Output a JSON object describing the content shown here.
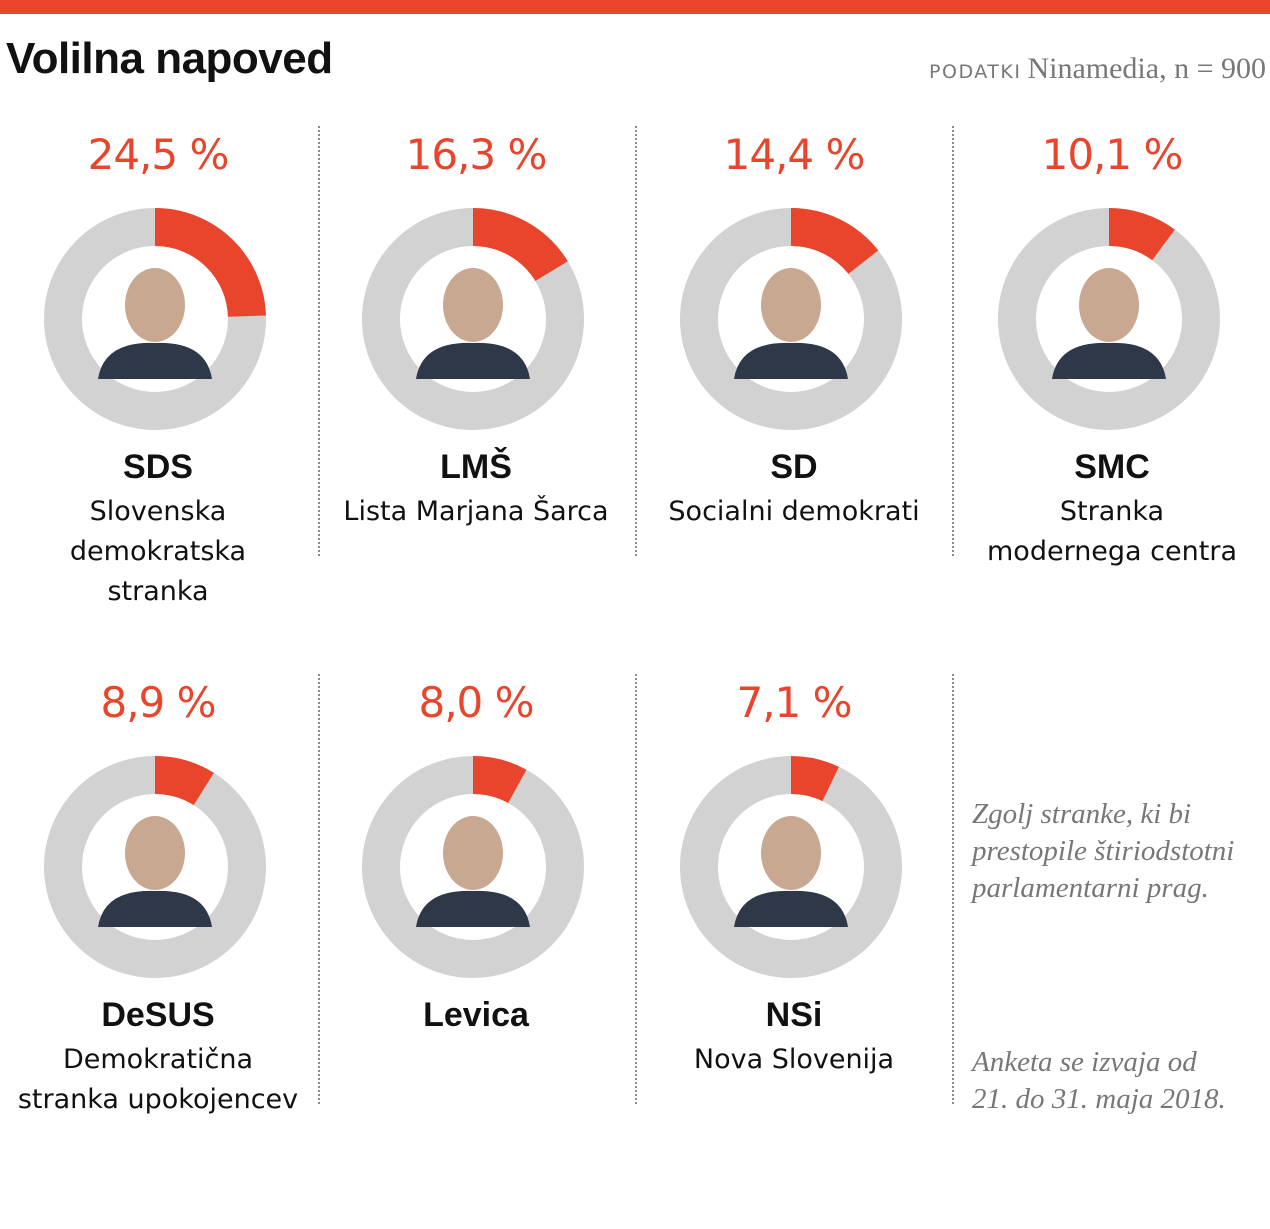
{
  "title": "Volilna napoved",
  "source": {
    "label": "PODATKI",
    "text": "Ninamedia, n = 900"
  },
  "colors": {
    "accent": "#e8452c",
    "ring": "#d2d2d2",
    "text": "#111111",
    "note": "#777777"
  },
  "chart_data": {
    "type": "pie",
    "variant": "donut",
    "title": "Volilna napoved",
    "unit": "%",
    "categories": [
      "SDS",
      "LMŠ",
      "SD",
      "SMC",
      "DeSUS",
      "Levica",
      "NSi"
    ],
    "values": [
      24.5,
      16.3,
      14.4,
      10.1,
      8.9,
      8.0,
      7.1
    ],
    "parties": [
      {
        "abbr": "SDS",
        "name": "Slovenska demokratska stranka",
        "name_lines": [
          "Slovenska demokratska",
          "stranka"
        ],
        "value": 24.5,
        "label": "24,5 %"
      },
      {
        "abbr": "LMŠ",
        "name": "Lista Marjana Šarca",
        "name_lines": [
          "Lista Marjana Šarca"
        ],
        "value": 16.3,
        "label": "16,3 %"
      },
      {
        "abbr": "SD",
        "name": "Socialni demokrati",
        "name_lines": [
          "Socialni demokrati"
        ],
        "value": 14.4,
        "label": "14,4 %"
      },
      {
        "abbr": "SMC",
        "name": "Stranka modernega centra",
        "name_lines": [
          "Stranka",
          "modernega centra"
        ],
        "value": 10.1,
        "label": "10,1 %"
      },
      {
        "abbr": "DeSUS",
        "name": "Demokratična stranka upokojencev",
        "name_lines": [
          "Demokratična",
          "stranka upokojencev"
        ],
        "value": 8.9,
        "label": "8,9 %"
      },
      {
        "abbr": "Levica",
        "name": "",
        "name_lines": [],
        "value": 8.0,
        "label": "8,0 %"
      },
      {
        "abbr": "NSi",
        "name": "Nova Slovenija",
        "name_lines": [
          "Nova Slovenija"
        ],
        "value": 7.1,
        "label": "7,1 %"
      }
    ]
  },
  "notes": {
    "threshold": [
      "Zgolj stranke, ki bi",
      "prestopile štiriodstotni",
      "parlamentarni prag."
    ],
    "period": [
      "Anketa se izvaja od",
      "21. do 31. maja 2018."
    ]
  }
}
